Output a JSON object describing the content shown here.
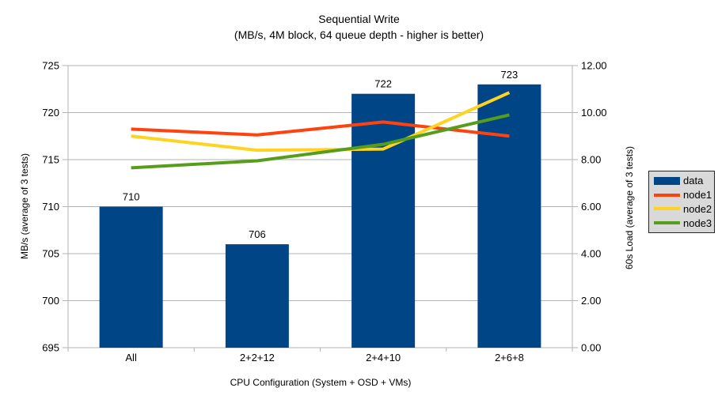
{
  "chart_data": {
    "type": "bar+line",
    "title": "Sequential Write",
    "subtitle": "(MB/s, 4M block, 64 queue depth - higher is better)",
    "categories": [
      "All",
      "2+2+12",
      "2+4+10",
      "2+6+8"
    ],
    "series": [
      {
        "name": "data",
        "type": "bar",
        "axis": "left",
        "color": "#004586",
        "values": [
          710,
          706,
          722,
          723
        ]
      },
      {
        "name": "node1",
        "type": "line",
        "axis": "right",
        "color": "#FF420E",
        "values": [
          9.3,
          9.05,
          9.6,
          9.0
        ]
      },
      {
        "name": "node2",
        "type": "line",
        "axis": "right",
        "color": "#FFD320",
        "values": [
          9.0,
          8.4,
          8.45,
          10.85
        ]
      },
      {
        "name": "node3",
        "type": "line",
        "axis": "right",
        "color": "#579D1C",
        "values": [
          7.65,
          7.95,
          8.65,
          9.9
        ]
      }
    ],
    "bar_labels": [
      "710",
      "706",
      "722",
      "723"
    ],
    "left_axis": {
      "title": "MB/s (average of 3 tests)",
      "min": 695,
      "max": 725,
      "step": 5,
      "decimals": 0
    },
    "right_axis": {
      "title": "60s Load (average of 3 tests)",
      "min": 0,
      "max": 12,
      "step": 2,
      "decimals": 2
    },
    "x_axis": {
      "title": "CPU Configuration (System + OSD + VMs)"
    },
    "grid": "horizontal",
    "legend_position": "right"
  },
  "colors": {
    "background": "#ffffff",
    "grid_and_axis": "#b3b3b3",
    "text": "#000000",
    "legend_background": "#d9d9d9",
    "legend_border": "#262626"
  }
}
